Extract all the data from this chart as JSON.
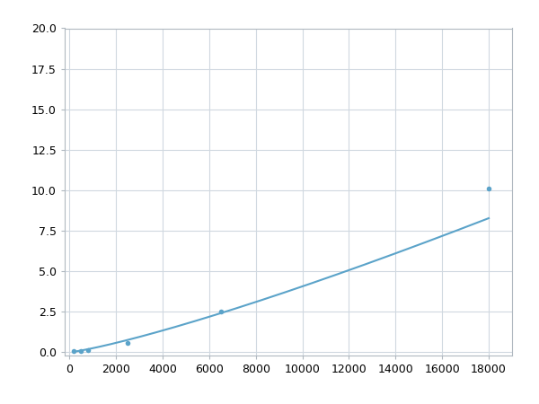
{
  "x": [
    200,
    500,
    800,
    2500,
    6500,
    18000
  ],
  "y": [
    0.05,
    0.1,
    0.15,
    0.6,
    2.5,
    10.1
  ],
  "line_color": "#5ba3c9",
  "marker_color": "#5ba3c9",
  "marker_size": 4,
  "line_width": 1.5,
  "xlim": [
    -200,
    19000
  ],
  "ylim": [
    -0.2,
    20.0
  ],
  "xticks": [
    0,
    2000,
    4000,
    6000,
    8000,
    10000,
    12000,
    14000,
    16000,
    18000
  ],
  "yticks": [
    0.0,
    2.5,
    5.0,
    7.5,
    10.0,
    12.5,
    15.0,
    17.5,
    20.0
  ],
  "grid_color": "#d0d8e0",
  "background_color": "#ffffff",
  "tick_fontsize": 9,
  "spine_color": "#b0b8c0",
  "fig_width": 6.0,
  "fig_height": 4.5,
  "dpi": 100
}
